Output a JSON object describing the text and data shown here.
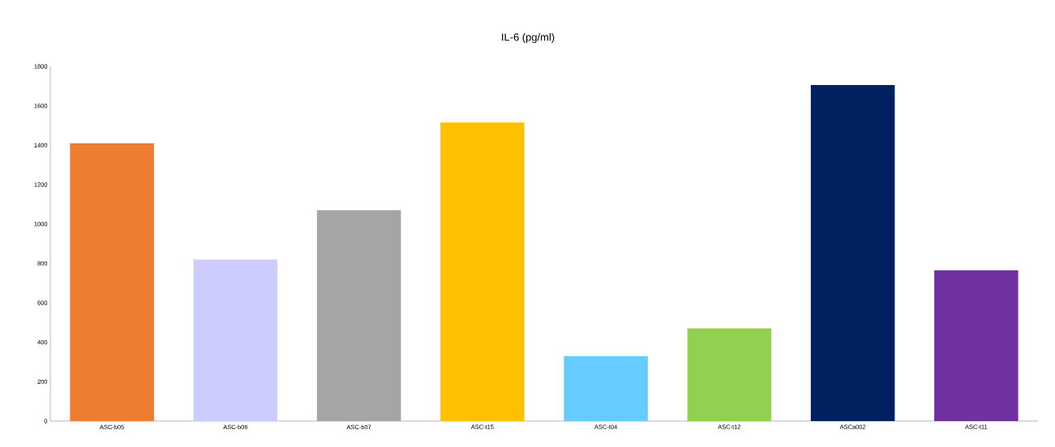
{
  "chart_data": {
    "type": "bar",
    "title": "IL-6 (pg/ml)",
    "categories": [
      "ASC-b05",
      "ASC-b06",
      "ASC-b07",
      "ASC-t15",
      "ASC-t04",
      "ASC-t12",
      "ASCa002",
      "ASC-t11"
    ],
    "values": [
      1410,
      820,
      1070,
      1515,
      330,
      470,
      1705,
      765
    ],
    "colors": [
      "#ed7d31",
      "#ccccff",
      "#a5a5a5",
      "#ffc000",
      "#66ccff",
      "#92d050",
      "#002060",
      "#7030a0"
    ],
    "ylim": [
      0,
      1800
    ],
    "yticks": [
      0,
      200,
      400,
      600,
      800,
      1000,
      1200,
      1400,
      1600,
      1800
    ]
  }
}
